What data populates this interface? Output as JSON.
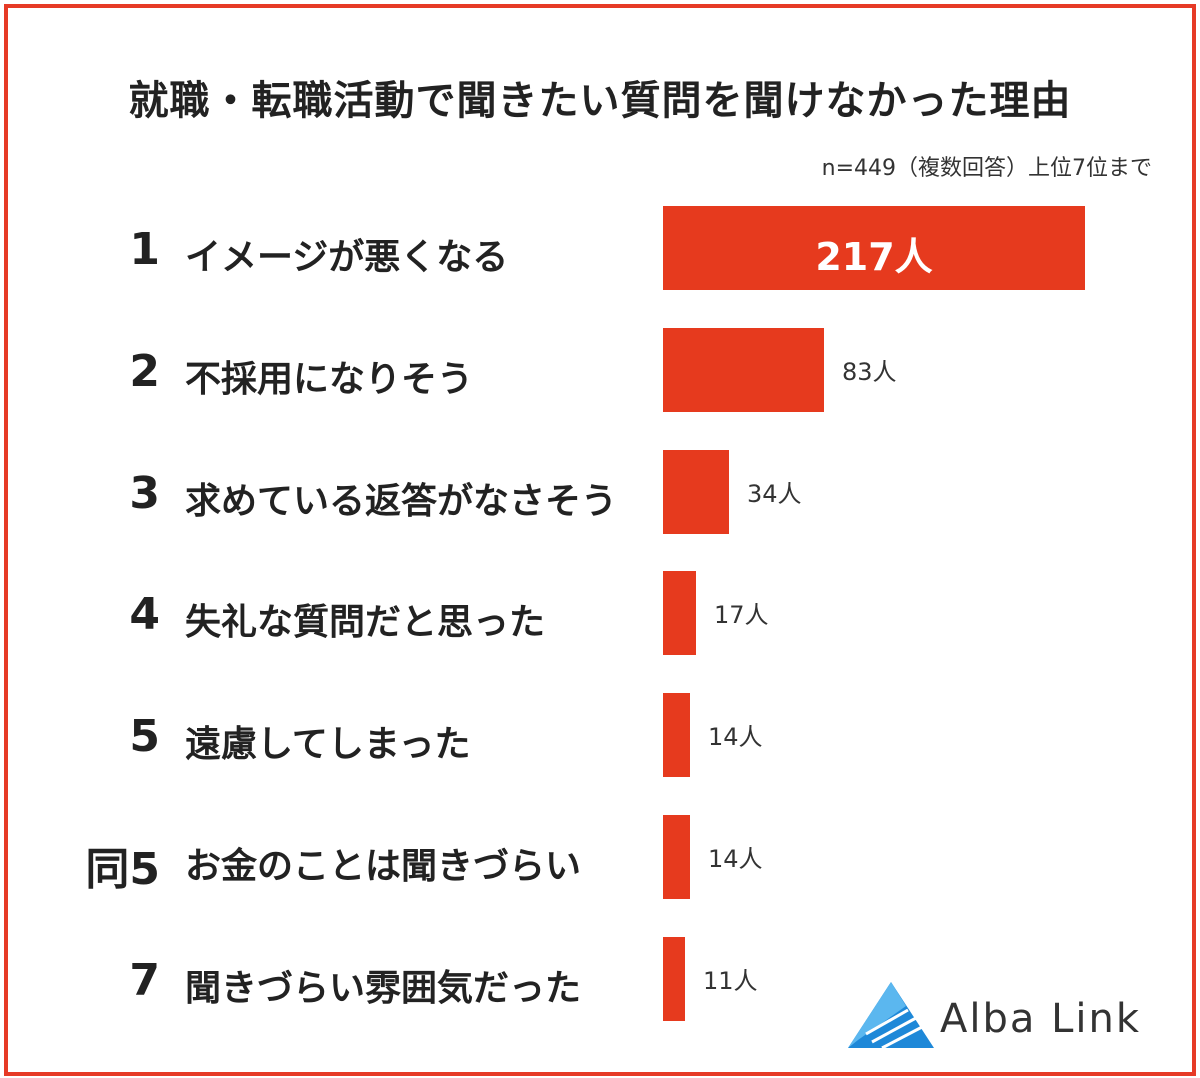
{
  "title": "就職・転職活動で聞きたい質問を聞けなかった理由",
  "note": "n=449（複数回答）上位7位まで",
  "brand": "Alba Link",
  "colors": {
    "accent": "#e63a1e",
    "frame": "#e63a26",
    "logo": "#1e88d8"
  },
  "chart_data": {
    "type": "bar",
    "orientation": "horizontal",
    "unit": "人",
    "categories": [
      "イメージが悪くなる",
      "不採用になりそう",
      "求めている返答がなさそう",
      "失礼な質問だと思った",
      "遠慮してしまった",
      "お金のことは聞きづらい",
      "聞きづらい雰囲気だった"
    ],
    "ranks": [
      "1",
      "2",
      "3",
      "4",
      "5",
      "同5",
      "7"
    ],
    "values": [
      217,
      83,
      34,
      17,
      14,
      14,
      11
    ],
    "value_labels": [
      "217人",
      "83人",
      "34人",
      "17人",
      "14人",
      "14人",
      "11人"
    ],
    "grid": false,
    "legend": "none"
  }
}
